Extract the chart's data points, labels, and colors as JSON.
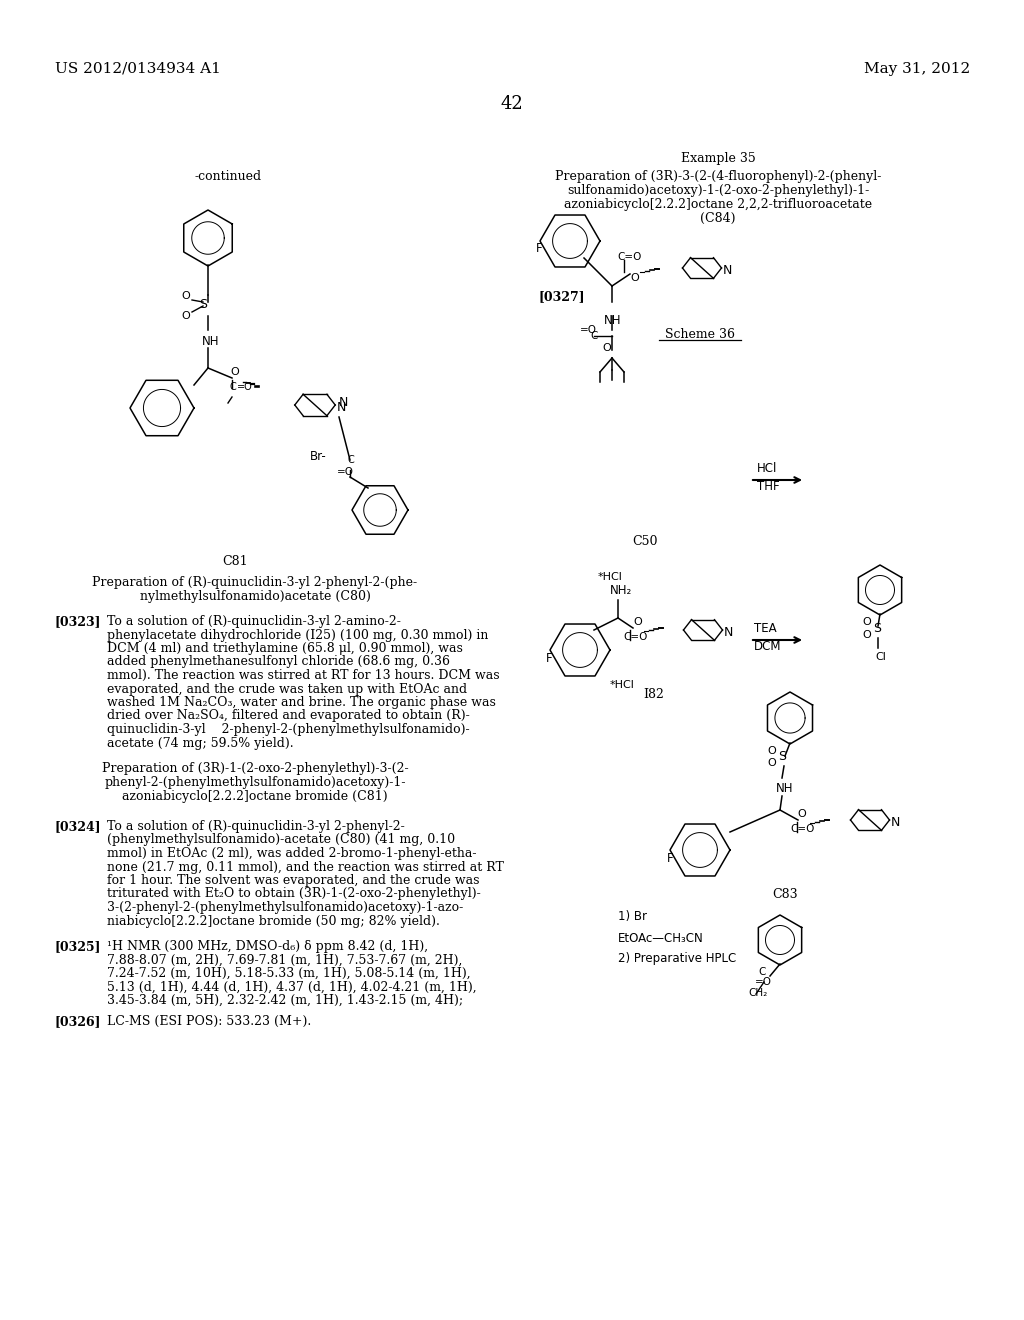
{
  "page_number": "42",
  "header_left": "US 2012/0134934 A1",
  "header_right": "May 31, 2012",
  "background_color": "#ffffff",
  "text_color": "#000000",
  "continued_label": "-continued",
  "example_label": "Example 35",
  "example_title_line1": "Preparation of (3R)-3-(2-(4-fluorophenyl)-2-(phenyl-",
  "example_title_line2": "sulfonamido)acetoxy)-1-(2-oxo-2-phenylethyl)-1-",
  "example_title_line3": "azoniabicyclo[2.2.2]octane 2,2,2-trifluoroacetate",
  "example_title_line4": "(C84)",
  "paragraph_0327": "[0327]",
  "scheme_label": "Scheme 36",
  "compound_C81": "C81",
  "compound_C50": "C50",
  "compound_I82": "I82",
  "compound_C83": "C83",
  "label_Br": "Br-",
  "label_hcl1": "*HCl",
  "label_hcl2": "*HCl",
  "prep_C80_line1": "Preparation of (R)-quinuclidin-3-yl 2-phenyl-2-(phe-",
  "prep_C80_line2": "nylmethylsulfonamido)acetate (C80)",
  "para_0323_label": "[0323]",
  "para_0323_lines": [
    "To a solution of (R)-quinuclidin-3-yl 2-amino-2-",
    "phenylacetate dihydrochloride (I25) (100 mg, 0.30 mmol) in",
    "DCM (4 ml) and triethylamine (65.8 μl, 0.90 mmol), was",
    "added phenylmethanesulfonyl chloride (68.6 mg, 0.36",
    "mmol). The reaction was stirred at RT for 13 hours. DCM was",
    "evaporated, and the crude was taken up with EtOAc and",
    "washed 1M Na₂CO₃, water and brine. The organic phase was",
    "dried over Na₂SO₄, filtered and evaporated to obtain (R)-",
    "quinuclidin-3-yl    2-phenyl-2-(phenylmethylsulfonamido)-",
    "acetate (74 mg; 59.5% yield)."
  ],
  "prep_C81_line1": "Preparation of (3R)-1-(2-oxo-2-phenylethyl)-3-(2-",
  "prep_C81_line2": "phenyl-2-(phenylmethylsulfonamido)acetoxy)-1-",
  "prep_C81_line3": "azoniabicyclo[2.2.2]octane bromide (C81)",
  "para_0324_label": "[0324]",
  "para_0324_lines": [
    "To a solution of (R)-quinuclidin-3-yl 2-phenyl-2-",
    "(phenylmethylsulfonamido)-acetate (C80) (41 mg, 0.10",
    "mmol) in EtOAc (2 ml), was added 2-bromo-1-phenyl-etha-",
    "none (21.7 mg, 0.11 mmol), and the reaction was stirred at RT",
    "for 1 hour. The solvent was evaporated, and the crude was",
    "triturated with Et₂O to obtain (3R)-1-(2-oxo-2-phenylethyl)-",
    "3-(2-phenyl-2-(phenylmethylsulfonamido)acetoxy)-1-azo-",
    "niabicyclo[2.2.2]octane bromide (50 mg; 82% yield)."
  ],
  "para_0325_label": "[0325]",
  "para_0325_lines": [
    "¹H NMR (300 MHz, DMSO-d₆) δ ppm 8.42 (d, 1H),",
    "7.88-8.07 (m, 2H), 7.69-7.81 (m, 1H), 7.53-7.67 (m, 2H),",
    "7.24-7.52 (m, 10H), 5.18-5.33 (m, 1H), 5.08-5.14 (m, 1H),",
    "5.13 (d, 1H), 4.44 (d, 1H), 4.37 (d, 1H), 4.02-4.21 (m, 1H),",
    "3.45-3.84 (m, 5H), 2.32-2.42 (m, 1H), 1.43-2.15 (m, 4H);"
  ],
  "para_0326_label": "[0326]",
  "para_0326_text": "LC-MS (ESI POS): 533.23 (M+).",
  "label_1Br": "1) Br",
  "label_EtOAc": "EtOAc—CH₃CN",
  "label_2prep": "2) Preparative HPLC"
}
